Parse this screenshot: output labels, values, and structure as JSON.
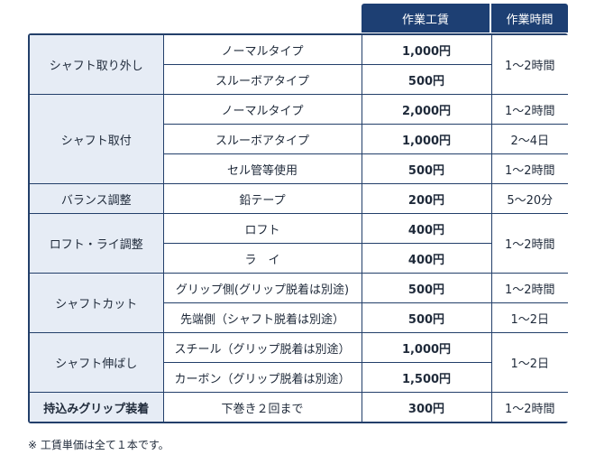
{
  "header": {
    "price_label": "作業工賃",
    "time_label": "作業時間"
  },
  "rows": [
    {
      "category": "シャフト取り外し",
      "item": "ノーマルタイプ",
      "price": "1,000円",
      "time": "1～2時間"
    },
    {
      "item": "スルーボアタイプ",
      "price": "500円"
    },
    {
      "category": "シャフト取付",
      "item": "ノーマルタイプ",
      "price": "2,000円",
      "time": "1～2時間"
    },
    {
      "item": "スルーボアタイプ",
      "price": "1,000円",
      "time": "2～4日"
    },
    {
      "item": "セル管等使用",
      "price": "500円",
      "time": "1～2時間"
    },
    {
      "category": "バランス調整",
      "item": "鉛テープ",
      "price": "200円",
      "time": "5～20分"
    },
    {
      "category": "ロフト・ライ調整",
      "item": "ロフト",
      "price": "400円",
      "time": "1～2時間"
    },
    {
      "item": "ラ　イ",
      "price": "400円"
    },
    {
      "category": "シャフトカット",
      "item": "グリップ側(グリップ脱着は別途)",
      "price": "500円",
      "time": "1～2時間"
    },
    {
      "item": "先端側（シャフト脱着は別途）",
      "price": "500円",
      "time": "1～2日"
    },
    {
      "category": "シャフト伸ばし",
      "item": "スチール（グリップ脱着は別途）",
      "price": "1,000円",
      "time": "1～2日"
    },
    {
      "item": "カーボン（グリップ脱着は別途）",
      "price": "1,500円"
    },
    {
      "category": "持込みグリップ装着",
      "item": "下巻き２回まで",
      "price": "300円",
      "time": "1～2時間"
    }
  ],
  "footnote": "※ 工賃単価は全て１本です。",
  "colors": {
    "header_bg": "#1d3f73",
    "category_bg": "#e6ecf5",
    "border": "#233f6a"
  }
}
